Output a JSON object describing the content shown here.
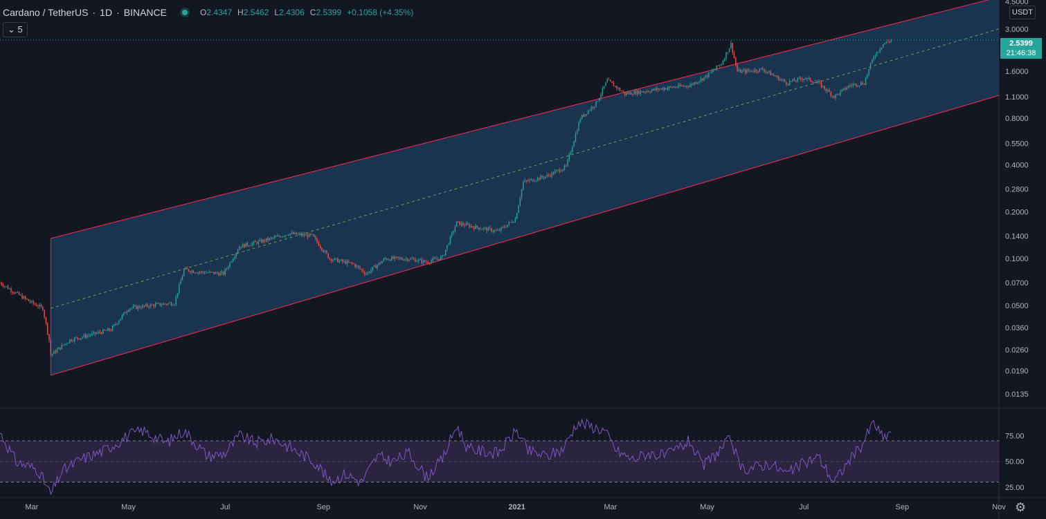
{
  "header": {
    "pair": "Cardano / TetherUS",
    "interval": "1D",
    "exchange": "BINANCE",
    "o_label": "O",
    "o_value": "2.4347",
    "h_label": "H",
    "h_value": "2.5462",
    "l_label": "L",
    "l_value": "2.4306",
    "c_label": "C",
    "c_value": "2.5399",
    "change": "+0.1058 (+4.35%)"
  },
  "indicators_button": "5",
  "currency_button": "USDT",
  "last_price": {
    "value": "2.5399",
    "countdown": "21:46:38"
  },
  "colors": {
    "background": "#131722",
    "up": "#26a69a",
    "down": "#ef5350",
    "channel_line": "#e0294a",
    "channel_fill": "#1c3a57",
    "midline": "#6f9a4a",
    "rsi_line": "#7e57c2",
    "rsi_band": "#2a2440"
  },
  "icons": {
    "status": "live-dot-icon",
    "indicators": "chevron-down-icon",
    "settings": "gear-icon"
  },
  "chart_data": [
    {
      "type": "candlestick",
      "title": "Cardano / TetherUS · 1D · BINANCE",
      "scale": "log",
      "ylim": [
        0.011,
        4.6
      ],
      "y_ticks": [
        "4.5000",
        "3.0000",
        "2.5399",
        "1.6000",
        "1.1000",
        "0.8000",
        "0.5500",
        "0.4000",
        "0.2800",
        "0.2000",
        "0.1400",
        "0.1000",
        "0.0700",
        "0.0500",
        "0.0360",
        "0.0260",
        "0.0190",
        "0.0135"
      ],
      "x_ticks": [
        "Mar",
        "May",
        "Jul",
        "Sep",
        "Nov",
        "2021",
        "Mar",
        "May",
        "Jul",
        "Sep",
        "Nov"
      ],
      "x_start": "2020-02-10",
      "x_end": "2021-11-01",
      "approx_close_path": [
        [
          "2020-02-10",
          0.07
        ],
        [
          "2020-02-20",
          0.06
        ],
        [
          "2020-03-01",
          0.052
        ],
        [
          "2020-03-08",
          0.048
        ],
        [
          "2020-03-12",
          0.03
        ],
        [
          "2020-03-13",
          0.024
        ],
        [
          "2020-03-25",
          0.03
        ],
        [
          "2020-04-05",
          0.032
        ],
        [
          "2020-04-20",
          0.035
        ],
        [
          "2020-05-01",
          0.048
        ],
        [
          "2020-05-15",
          0.05
        ],
        [
          "2020-05-30",
          0.052
        ],
        [
          "2020-06-05",
          0.085
        ],
        [
          "2020-06-15",
          0.082
        ],
        [
          "2020-06-30",
          0.08
        ],
        [
          "2020-07-10",
          0.12
        ],
        [
          "2020-07-25",
          0.13
        ],
        [
          "2020-08-10",
          0.145
        ],
        [
          "2020-08-25",
          0.14
        ],
        [
          "2020-09-05",
          0.1
        ],
        [
          "2020-09-20",
          0.092
        ],
        [
          "2020-09-28",
          0.08
        ],
        [
          "2020-10-10",
          0.1
        ],
        [
          "2020-10-25",
          0.1
        ],
        [
          "2020-11-05",
          0.095
        ],
        [
          "2020-11-15",
          0.102
        ],
        [
          "2020-11-24",
          0.17
        ],
        [
          "2020-12-05",
          0.16
        ],
        [
          "2020-12-20",
          0.15
        ],
        [
          "2020-12-31",
          0.18
        ],
        [
          "2021-01-05",
          0.31
        ],
        [
          "2021-01-20",
          0.34
        ],
        [
          "2021-02-01",
          0.39
        ],
        [
          "2021-02-10",
          0.8
        ],
        [
          "2021-02-20",
          1.0
        ],
        [
          "2021-02-27",
          1.4
        ],
        [
          "2021-03-10",
          1.15
        ],
        [
          "2021-03-25",
          1.2
        ],
        [
          "2021-04-05",
          1.25
        ],
        [
          "2021-04-20",
          1.3
        ],
        [
          "2021-05-01",
          1.5
        ],
        [
          "2021-05-10",
          1.8
        ],
        [
          "2021-05-16",
          2.4
        ],
        [
          "2021-05-20",
          1.6
        ],
        [
          "2021-05-25",
          1.6
        ],
        [
          "2021-06-05",
          1.65
        ],
        [
          "2021-06-20",
          1.35
        ],
        [
          "2021-07-01",
          1.45
        ],
        [
          "2021-07-10",
          1.35
        ],
        [
          "2021-07-20",
          1.1
        ],
        [
          "2021-07-30",
          1.3
        ],
        [
          "2021-08-08",
          1.35
        ],
        [
          "2021-08-14",
          2.0
        ],
        [
          "2021-08-20",
          2.4
        ],
        [
          "2021-08-25",
          2.54
        ]
      ],
      "last_close": 2.5399,
      "channel": {
        "start_date": "2020-03-13",
        "end_date": "2021-11-01",
        "upper_start": 0.135,
        "upper_end": 4.8,
        "mid_start": 0.048,
        "mid_end": 3.0,
        "lower_start": 0.0178,
        "lower_end": 1.12
      }
    },
    {
      "type": "line",
      "title": "RSI",
      "ylim": [
        15,
        100
      ],
      "y_ticks": [
        "75.00",
        "50.00",
        "25.00"
      ],
      "bands": [
        30,
        70
      ],
      "approx_values": [
        [
          "2020-02-10",
          78
        ],
        [
          "2020-02-20",
          50
        ],
        [
          "2020-03-05",
          42
        ],
        [
          "2020-03-13",
          18
        ],
        [
          "2020-03-20",
          40
        ],
        [
          "2020-04-01",
          52
        ],
        [
          "2020-04-15",
          60
        ],
        [
          "2020-05-01",
          75
        ],
        [
          "2020-05-10",
          80
        ],
        [
          "2020-05-25",
          68
        ],
        [
          "2020-06-05",
          80
        ],
        [
          "2020-06-20",
          55
        ],
        [
          "2020-07-01",
          58
        ],
        [
          "2020-07-10",
          75
        ],
        [
          "2020-07-20",
          68
        ],
        [
          "2020-08-01",
          72
        ],
        [
          "2020-08-15",
          60
        ],
        [
          "2020-08-28",
          48
        ],
        [
          "2020-09-05",
          30
        ],
        [
          "2020-09-15",
          38
        ],
        [
          "2020-09-25",
          30
        ],
        [
          "2020-10-05",
          55
        ],
        [
          "2020-10-15",
          50
        ],
        [
          "2020-10-25",
          58
        ],
        [
          "2020-11-05",
          35
        ],
        [
          "2020-11-15",
          52
        ],
        [
          "2020-11-24",
          85
        ],
        [
          "2020-12-01",
          62
        ],
        [
          "2020-12-10",
          60
        ],
        [
          "2020-12-20",
          58
        ],
        [
          "2021-01-01",
          80
        ],
        [
          "2021-01-08",
          60
        ],
        [
          "2021-01-20",
          55
        ],
        [
          "2021-01-30",
          62
        ],
        [
          "2021-02-08",
          88
        ],
        [
          "2021-02-15",
          85
        ],
        [
          "2021-02-25",
          80
        ],
        [
          "2021-03-05",
          60
        ],
        [
          "2021-03-15",
          52
        ],
        [
          "2021-03-25",
          58
        ],
        [
          "2021-04-05",
          55
        ],
        [
          "2021-04-20",
          70
        ],
        [
          "2021-04-28",
          45
        ],
        [
          "2021-05-05",
          55
        ],
        [
          "2021-05-16",
          72
        ],
        [
          "2021-05-22",
          42
        ],
        [
          "2021-06-01",
          45
        ],
        [
          "2021-06-10",
          48
        ],
        [
          "2021-06-20",
          38
        ],
        [
          "2021-07-01",
          48
        ],
        [
          "2021-07-10",
          55
        ],
        [
          "2021-07-20",
          30
        ],
        [
          "2021-07-30",
          52
        ],
        [
          "2021-08-05",
          62
        ],
        [
          "2021-08-14",
          88
        ],
        [
          "2021-08-20",
          72
        ],
        [
          "2021-08-25",
          80
        ]
      ]
    }
  ]
}
